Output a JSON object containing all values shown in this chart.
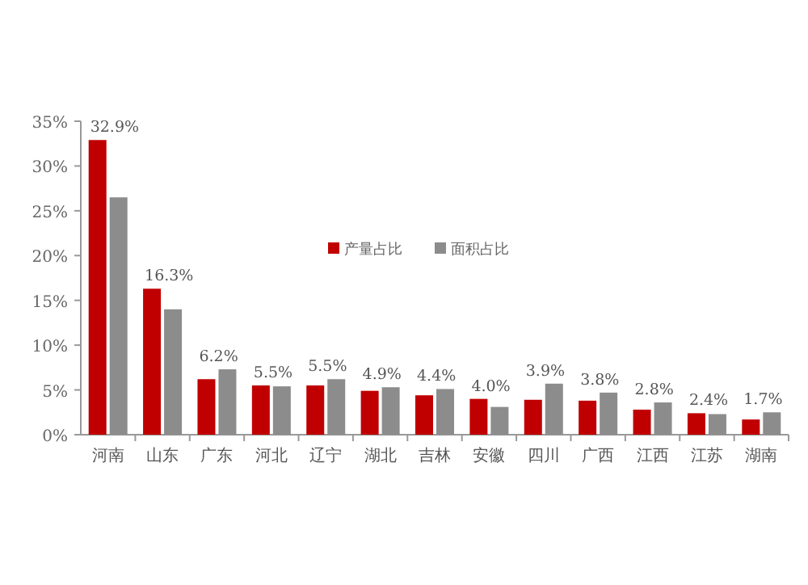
{
  "chart_data": {
    "type": "bar",
    "categories": [
      "河南",
      "山东",
      "广东",
      "河北",
      "辽宁",
      "湖北",
      "吉林",
      "安徽",
      "四川",
      "广西",
      "江西",
      "江苏",
      "湖南"
    ],
    "series": [
      {
        "name": "产量占比",
        "color": "#c00000",
        "values": [
          32.9,
          16.3,
          6.2,
          5.5,
          5.5,
          4.9,
          4.4,
          4.0,
          3.9,
          3.8,
          2.8,
          2.4,
          1.7
        ],
        "value_labels": [
          "32.9%",
          "16.3%",
          "6.2%",
          "5.5%",
          "5.5%",
          "4.9%",
          "4.4%",
          "4.0%",
          "3.9%",
          "3.8%",
          "2.8%",
          "2.4%",
          "1.7%"
        ]
      },
      {
        "name": "面积占比",
        "color": "#8c8c8c",
        "values": [
          26.5,
          14,
          7.3,
          5.4,
          6.2,
          5.3,
          5.1,
          3.1,
          5.7,
          4.7,
          3.6,
          2.3,
          2.5
        ]
      }
    ],
    "ylim": [
      0,
      35
    ],
    "yticks": [
      {
        "value": 0,
        "label": "0%"
      },
      {
        "value": 5,
        "label": "5%"
      },
      {
        "value": 10,
        "label": "10%"
      },
      {
        "value": 15,
        "label": "15%"
      },
      {
        "value": 20,
        "label": "20%"
      },
      {
        "value": 25,
        "label": "25%"
      },
      {
        "value": 30,
        "label": "30%"
      },
      {
        "value": 35,
        "label": "35%"
      }
    ],
    "legend": "top",
    "grid": false
  }
}
